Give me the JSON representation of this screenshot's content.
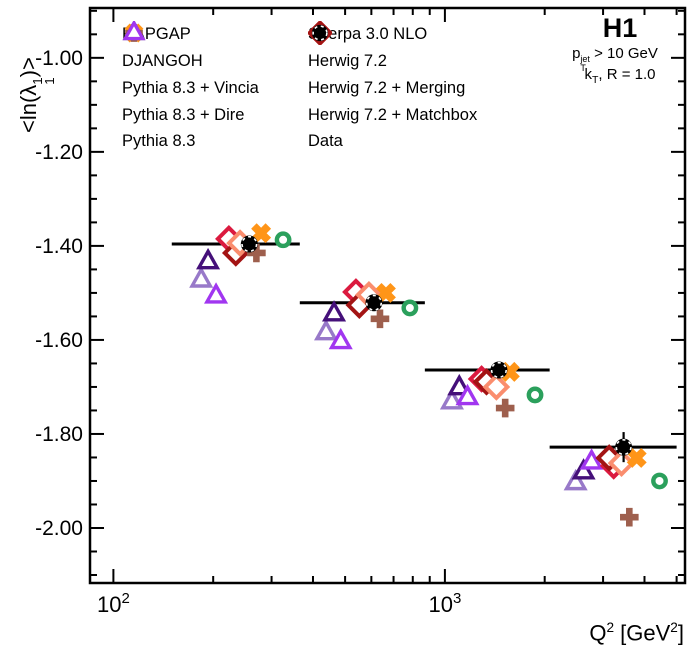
{
  "header": {
    "experiment": "H1",
    "pt_cut": {
      "base": "p",
      "sup": "jet",
      "sub": "T",
      "rest": " > 10 GeV"
    },
    "kt_info": {
      "base": "k",
      "sub": "T",
      "rest": ", R = 1.0"
    }
  },
  "legend": {
    "col1": [
      "RAPGAP",
      "DJANGOH",
      "Pythia 8.3 + Vincia",
      "Pythia 8.3 + Dire",
      "Pythia 8.3"
    ],
    "col2": [
      "Sherpa 3.0 NLO",
      "Herwig 7.2",
      "Herwig 7.2 + Merging",
      "Herwig 7.2 + Matchbox",
      "Data"
    ]
  },
  "axes": {
    "x": {
      "scale": "log",
      "min": 85,
      "max": 5300,
      "title_base": "Q",
      "title_sup": "2",
      "title_mid": " [GeV",
      "title_sup2": "2",
      "title_end": "]",
      "major_ticks": [
        {
          "value": 100,
          "base": "10",
          "exp": "2"
        },
        {
          "value": 1000,
          "base": "10",
          "exp": "3"
        }
      ],
      "minor_ticks": [
        200,
        300,
        400,
        500,
        600,
        700,
        800,
        900,
        2000,
        3000,
        4000,
        5000
      ]
    },
    "y": {
      "scale": "linear",
      "min": -2.117,
      "max": -0.894,
      "major_ticks": [
        {
          "value": -1.0,
          "label": "-1.00"
        },
        {
          "value": -1.2,
          "label": "-1.20"
        },
        {
          "value": -1.4,
          "label": "-1.40"
        },
        {
          "value": -1.6,
          "label": "-1.60"
        },
        {
          "value": -1.8,
          "label": "-1.80"
        },
        {
          "value": -2.0,
          "label": "-2.00"
        }
      ],
      "minor_step": 0.05,
      "title": {
        "pre": "<ln(",
        "sym": "λ",
        "sup": "1",
        "sub": "1",
        "post": ")>"
      }
    }
  },
  "chart_data": {
    "type": "scatter",
    "xlabel": "Q^2 [GeV^2]",
    "ylabel": "<ln(lambda_1^1)>",
    "x_log": true,
    "x_range": [
      85,
      5300
    ],
    "y_range": [
      -2.117,
      -0.894
    ],
    "bins": [
      {
        "x1": 150,
        "x2": 365,
        "y": -1.396
      },
      {
        "x1": 365,
        "x2": 870,
        "y": -1.521
      },
      {
        "x1": 870,
        "x2": 2070,
        "y": -1.664
      },
      {
        "x1": 2070,
        "x2": 5000,
        "y": -1.828
      }
    ],
    "series": [
      {
        "name": "Pythia 8.3 + Vincia",
        "marker": "triangle",
        "color": "#9879C9",
        "points": [
          {
            "q2": 184,
            "val": -1.473
          },
          {
            "q2": 438,
            "val": -1.585
          },
          {
            "q2": 1050,
            "val": -1.732
          },
          {
            "q2": 2480,
            "val": -1.904
          }
        ]
      },
      {
        "name": "Pythia 8.3 + Dire",
        "marker": "triangle",
        "color": "#45107A",
        "points": [
          {
            "q2": 193,
            "val": -1.434
          },
          {
            "q2": 463,
            "val": -1.545
          },
          {
            "q2": 1105,
            "val": -1.702
          },
          {
            "q2": 2620,
            "val": -1.881
          }
        ]
      },
      {
        "name": "Pythia 8.3",
        "marker": "triangle",
        "color": "#A136F0",
        "points": [
          {
            "q2": 204,
            "val": -1.507
          },
          {
            "q2": 485,
            "val": -1.604
          },
          {
            "q2": 1170,
            "val": -1.723
          },
          {
            "q2": 2770,
            "val": -1.86
          }
        ]
      },
      {
        "name": "Sherpa 3.0 NLO",
        "marker": "circle",
        "color": "#2BA05C",
        "points": [
          {
            "q2": 325,
            "val": -1.387
          },
          {
            "q2": 784,
            "val": -1.532
          },
          {
            "q2": 1870,
            "val": -1.717
          },
          {
            "q2": 4440,
            "val": -1.9
          }
        ]
      },
      {
        "name": "Herwig 7.2",
        "marker": "diamond",
        "color": "#DB1A3F",
        "points": [
          {
            "q2": 223,
            "val": -1.385
          },
          {
            "q2": 539,
            "val": -1.498
          },
          {
            "q2": 1290,
            "val": -1.683
          },
          {
            "q2": 3230,
            "val": -1.868
          }
        ]
      },
      {
        "name": "Herwig 7.2 + Matchbox",
        "marker": "diamond",
        "color": "#A31414",
        "points": [
          {
            "q2": 234,
            "val": -1.415
          },
          {
            "q2": 552,
            "val": -1.526
          },
          {
            "q2": 1335,
            "val": -1.689
          },
          {
            "q2": 3130,
            "val": -1.851
          }
        ]
      },
      {
        "name": "Herwig 7.2 + Merging",
        "marker": "diamond",
        "color": "#FA8D6E",
        "points": [
          {
            "q2": 241,
            "val": -1.394
          },
          {
            "q2": 590,
            "val": -1.504
          },
          {
            "q2": 1430,
            "val": -1.7
          },
          {
            "q2": 3410,
            "val": -1.862
          }
        ]
      },
      {
        "name": "DJANGOH",
        "marker": "plus",
        "color": "#9E5F4D",
        "points": [
          {
            "q2": 270,
            "val": -1.415
          },
          {
            "q2": 637,
            "val": -1.555
          },
          {
            "q2": 1520,
            "val": -1.745
          },
          {
            "q2": 3600,
            "val": -1.977
          }
        ]
      },
      {
        "name": "RAPGAP",
        "marker": "xcross",
        "color": "#FF9518",
        "points": [
          {
            "q2": 279,
            "val": -1.373
          },
          {
            "q2": 664,
            "val": -1.5
          },
          {
            "q2": 1570,
            "val": -1.668
          },
          {
            "q2": 3790,
            "val": -1.851
          }
        ]
      },
      {
        "name": "Data",
        "marker": "data",
        "color": "#000000",
        "points": [
          {
            "q2": 257,
            "val": -1.396,
            "err": 0.012
          },
          {
            "q2": 611,
            "val": -1.521,
            "err": 0.012
          },
          {
            "q2": 1455,
            "val": -1.664,
            "err": 0.015
          },
          {
            "q2": 3460,
            "val": -1.828,
            "err": 0.032
          }
        ]
      }
    ]
  }
}
